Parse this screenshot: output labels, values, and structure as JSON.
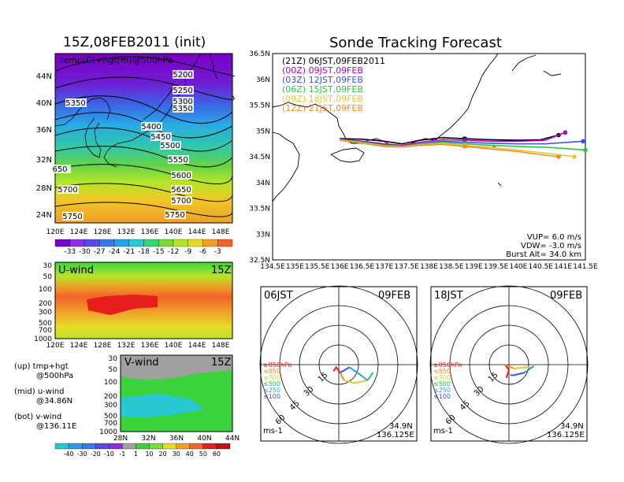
{
  "titles": {
    "left_main": "15Z,08FEB2011 (init)",
    "right_main": "Sonde Tracking Forecast"
  },
  "map_panel": {
    "field_label": "temp(C)+hgt(m)@500hPa",
    "lat_labels": [
      "44N",
      "40N",
      "36N",
      "32N",
      "28N",
      "24N"
    ],
    "lon_labels": [
      "120E",
      "124E",
      "128E",
      "132E",
      "136E",
      "140E",
      "144E",
      "148E"
    ],
    "contour_labels": [
      "5200",
      "5250",
      "5300",
      "5350",
      "5350",
      "5400",
      "5450",
      "5500",
      "5550",
      "5600",
      "5650",
      "5700",
      "5700",
      "5750",
      "5750",
      "650"
    ],
    "temp_colorbar": [
      "-33",
      "-30",
      "-27",
      "-24",
      "-21",
      "-18",
      "-15",
      "-12",
      "-9",
      "-6",
      "-3"
    ],
    "temp_colors": [
      "#7b00c8",
      "#8c2ee6",
      "#5a4ae0",
      "#3c78e6",
      "#28a0e6",
      "#28c8d2",
      "#3cd278",
      "#78dc3c",
      "#b4e628",
      "#e6dc28",
      "#f0a028",
      "#f06428"
    ]
  },
  "u_panel": {
    "label": "U-wind",
    "time": "15Z",
    "p_levels": [
      "30",
      "50",
      "100",
      "200",
      "300",
      "500",
      "700",
      "1000"
    ],
    "lon_labels": [
      "120E",
      "124E",
      "128E",
      "132E",
      "136E",
      "140E",
      "144E",
      "148E"
    ]
  },
  "v_panel": {
    "label": "V-wind",
    "time": "15Z",
    "p_levels": [
      "30",
      "50",
      "100",
      "200",
      "300",
      "500",
      "700",
      "1000"
    ],
    "lat_labels": [
      "28N",
      "32N",
      "36N",
      "40N",
      "44N"
    ]
  },
  "legend_notes": [
    {
      "a": "(up) tmp+hgt",
      "b": "@500hPa"
    },
    {
      "a": "(mid) u-wind",
      "b": "@34.86N"
    },
    {
      "a": "(bot) v-wind",
      "b": "@136.11E"
    }
  ],
  "wind_colorbar": [
    "-40",
    "-30",
    "-20",
    "-10",
    "-1",
    "1",
    "10",
    "20",
    "30",
    "40",
    "50",
    "60"
  ],
  "wind_colors": [
    "#28c8d2",
    "#28a0e6",
    "#3c78e6",
    "#5a4ae0",
    "#8c2ee6",
    "#a0a0a0",
    "#3cd23c",
    "#78dc3c",
    "#e6dc28",
    "#f0a028",
    "#f06428",
    "#e61e1e"
  ],
  "track_panel": {
    "lat_labels": [
      "36.5N",
      "36N",
      "35.5N",
      "35N",
      "34.5N",
      "34N",
      "33.5N",
      "33N",
      "32.5N"
    ],
    "lon_labels": [
      "134.5E",
      "135E",
      "135.5E",
      "136E",
      "136.5E",
      "137E",
      "137.5E",
      "138E",
      "138.5E",
      "139E",
      "139.5E",
      "140E",
      "140.5E",
      "141E",
      "141.5E"
    ],
    "launches": [
      {
        "code": "(21Z)",
        "text": "06JST,09FEB2011",
        "color": "#000000"
      },
      {
        "code": "(00Z)",
        "text": "09JST,09FEB",
        "color": "#b400c8"
      },
      {
        "code": "(03Z)",
        "text": "12JST,09FEB",
        "color": "#3c50e6"
      },
      {
        "code": "(06Z)",
        "text": "15JST,09FEB",
        "color": "#28c83c"
      },
      {
        "code": "(09Z)",
        "text": "18JST,09FEB",
        "color": "#e6c828"
      },
      {
        "code": "(12Z)",
        "text": "21JST,09FEB",
        "color": "#f08c28"
      }
    ],
    "params": [
      "VUP= 6.0 m/s",
      "VDW= -3.0 m/s",
      "Burst Alt= 34.0 km"
    ]
  },
  "hodographs": [
    {
      "time": "06JST",
      "date": "09FEB",
      "unit": "ms-1",
      "lat": "34.9N",
      "lon": "136.125E",
      "ring_labels": [
        "15",
        "30",
        "45",
        "60"
      ]
    },
    {
      "time": "18JST",
      "date": "09FEB",
      "unit": "ms-1",
      "lat": "34.9N",
      "lon": "136.125E",
      "ring_labels": [
        "15",
        "30",
        "45",
        "60"
      ]
    }
  ],
  "hodo_levels": [
    {
      "label": "≥850hPa",
      "color": "#e61e1e"
    },
    {
      "label": "≤850",
      "color": "#f08c28"
    },
    {
      "label": "≤700",
      "color": "#e6c828"
    },
    {
      "label": "≤500",
      "color": "#28c83c"
    },
    {
      "label": "≤250",
      "color": "#28a0e6"
    },
    {
      "label": "≤100",
      "color": "#3c50e6"
    }
  ],
  "chart_data": [
    {
      "type": "heatmap",
      "title": "15Z,08FEB2011 (init)",
      "field": "temp(C)+hgt(m)@500hPa",
      "xlim": [
        120,
        150
      ],
      "ylim": [
        22,
        47
      ],
      "contours_m": [
        5200,
        5250,
        5300,
        5350,
        5400,
        5450,
        5500,
        5550,
        5600,
        5650,
        5700,
        5750
      ],
      "colorbar": [
        -33,
        -30,
        -27,
        -24,
        -21,
        -18,
        -15,
        -12,
        -9,
        -6,
        -3
      ]
    },
    {
      "type": "line",
      "title": "Sonde Tracking Forecast",
      "xlim": [
        134.5,
        141.5
      ],
      "ylim": [
        32.5,
        36.5
      ],
      "series": [
        {
          "name": "(21Z) 06JST,09FEB2011",
          "x": [
            136.0,
            136.5,
            137.0,
            137.4,
            137.8,
            138.3,
            138.8,
            139.4,
            140.0,
            140.5,
            140.9
          ],
          "y": [
            34.85,
            34.84,
            34.8,
            34.75,
            34.82,
            34.87,
            34.85,
            34.83,
            34.82,
            34.83,
            34.92
          ]
        },
        {
          "name": "(00Z) 09JST,09FEB",
          "x": [
            136.0,
            136.5,
            137.0,
            137.4,
            137.8,
            138.3,
            138.8,
            139.4,
            140.0,
            140.6,
            141.05
          ],
          "y": [
            34.84,
            34.8,
            34.75,
            34.72,
            34.78,
            34.83,
            34.82,
            34.8,
            34.8,
            34.82,
            34.97
          ]
        },
        {
          "name": "(03Z) 12JST,09FEB",
          "x": [
            136.0,
            136.5,
            137.0,
            137.4,
            137.8,
            138.3,
            138.8,
            139.4,
            140.0,
            140.6,
            141.45
          ],
          "y": [
            34.84,
            34.79,
            34.73,
            34.7,
            34.75,
            34.8,
            34.78,
            34.76,
            34.75,
            34.75,
            34.8
          ]
        },
        {
          "name": "(06Z) 15JST,09FEB",
          "x": [
            136.0,
            136.5,
            137.0,
            137.4,
            137.8,
            138.3,
            138.8,
            139.4,
            140.0,
            140.7,
            141.5
          ],
          "y": [
            34.83,
            34.78,
            34.72,
            34.7,
            34.74,
            34.78,
            34.75,
            34.72,
            34.7,
            34.68,
            34.63
          ]
        },
        {
          "name": "(09Z) 18JST,09FEB",
          "x": [
            136.0,
            136.5,
            137.0,
            137.4,
            137.8,
            138.3,
            138.8,
            139.4,
            140.0,
            140.6,
            141.25
          ],
          "y": [
            34.83,
            34.77,
            34.71,
            34.7,
            34.73,
            34.76,
            34.72,
            34.68,
            34.63,
            34.57,
            34.5
          ]
        },
        {
          "name": "(12Z) 21JST,09FEB",
          "x": [
            136.0,
            136.5,
            137.0,
            137.4,
            137.8,
            138.3,
            138.8,
            139.4,
            140.0,
            140.5,
            140.9
          ],
          "y": [
            34.82,
            34.76,
            34.7,
            34.69,
            34.72,
            34.74,
            34.7,
            34.65,
            34.6,
            34.54,
            34.5
          ]
        }
      ]
    },
    {
      "type": "line",
      "title": "06JST 09FEB",
      "series": [
        {
          "name": "≥850hPa",
          "x": [
            -4,
            -2,
            1
          ],
          "y": [
            5,
            2,
            6
          ]
        },
        {
          "name": "≤850",
          "x": [
            1,
            4
          ],
          "y": [
            6,
            12
          ]
        },
        {
          "name": "≤700",
          "x": [
            4,
            12,
            22
          ],
          "y": [
            12,
            14,
            12
          ]
        },
        {
          "name": "≤500",
          "x": [
            22,
            26
          ],
          "y": [
            12,
            6
          ]
        },
        {
          "name": "≤250",
          "x": [
            22,
            14,
            8
          ],
          "y": [
            12,
            6,
            2
          ]
        },
        {
          "name": "≤100",
          "x": [
            8,
            3,
            1
          ],
          "y": [
            2,
            5,
            6
          ]
        }
      ]
    },
    {
      "type": "line",
      "title": "18JST 09FEB",
      "series": [
        {
          "name": "≥850hPa",
          "x": [
            -2,
            0,
            -3
          ],
          "y": [
            10,
            4,
            0
          ]
        },
        {
          "name": "≤850",
          "x": [
            -3,
            4
          ],
          "y": [
            0,
            3
          ]
        },
        {
          "name": "≤700",
          "x": [
            4,
            12,
            18
          ],
          "y": [
            3,
            2,
            2
          ]
        },
        {
          "name": "≤500",
          "x": [
            18,
            19
          ],
          "y": [
            2,
            1
          ]
        },
        {
          "name": "≤250",
          "x": [
            19,
            12
          ],
          "y": [
            1,
            6
          ]
        },
        {
          "name": "≤100",
          "x": [
            12,
            4,
            1
          ],
          "y": [
            6,
            8,
            8
          ]
        }
      ]
    }
  ]
}
